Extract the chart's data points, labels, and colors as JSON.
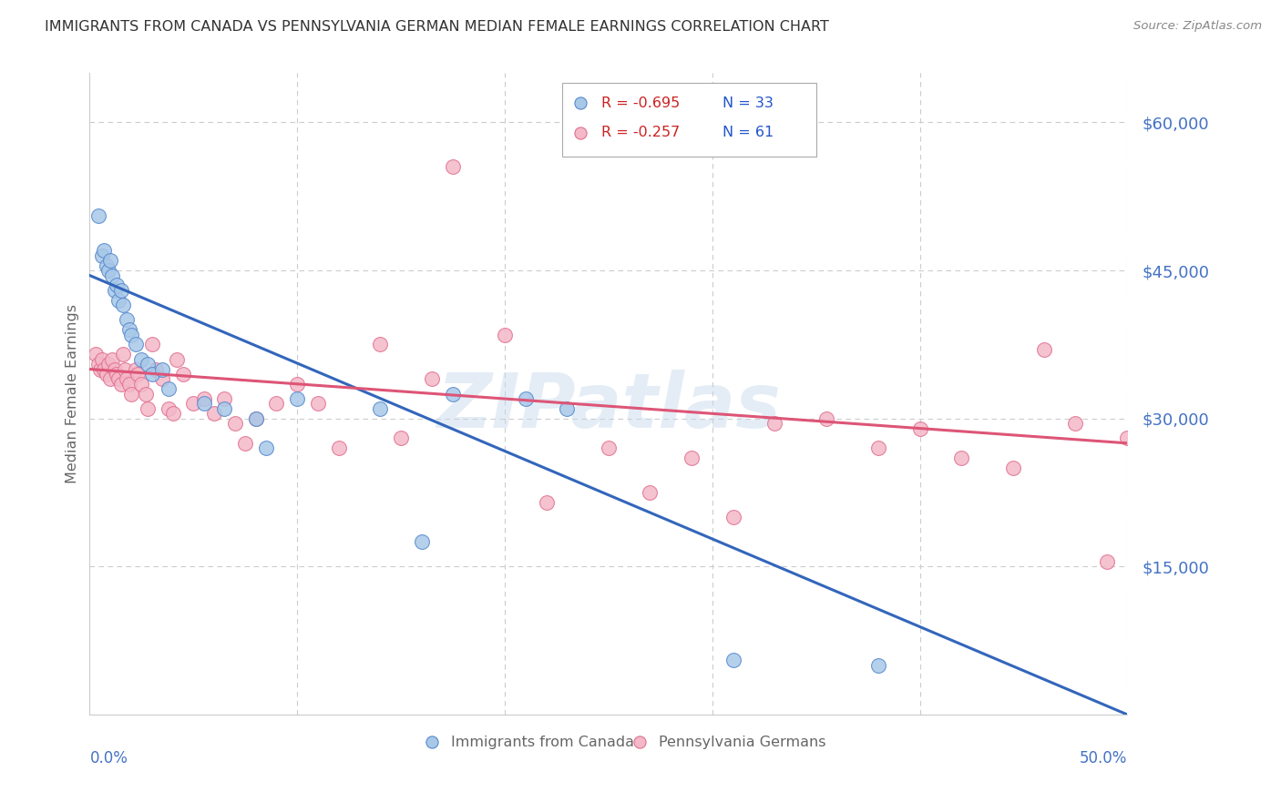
{
  "title": "IMMIGRANTS FROM CANADA VS PENNSYLVANIA GERMAN MEDIAN FEMALE EARNINGS CORRELATION CHART",
  "source": "Source: ZipAtlas.com",
  "ylabel": "Median Female Earnings",
  "yticks": [
    0,
    15000,
    30000,
    45000,
    60000
  ],
  "ytick_labels": [
    "",
    "$15,000",
    "$30,000",
    "$45,000",
    "$60,000"
  ],
  "ylim": [
    0,
    65000
  ],
  "xlim": [
    0.0,
    0.5
  ],
  "legend_blue_r": "R = -0.695",
  "legend_blue_n": "N = 33",
  "legend_pink_r": "R = -0.257",
  "legend_pink_n": "N = 61",
  "legend_label_blue": "Immigrants from Canada",
  "legend_label_pink": "Pennsylvania Germans",
  "blue_color": "#a8c8e8",
  "pink_color": "#f4b8c8",
  "blue_edge_color": "#5588cc",
  "pink_edge_color": "#e07090",
  "blue_line_color": "#3366bb",
  "pink_line_color": "#dd5577",
  "blue_scatter_x": [
    0.004,
    0.006,
    0.007,
    0.008,
    0.009,
    0.01,
    0.011,
    0.012,
    0.013,
    0.014,
    0.015,
    0.016,
    0.018,
    0.019,
    0.02,
    0.022,
    0.025,
    0.028,
    0.03,
    0.035,
    0.038,
    0.055,
    0.065,
    0.08,
    0.085,
    0.1,
    0.14,
    0.16,
    0.175,
    0.21,
    0.23,
    0.31,
    0.38
  ],
  "blue_scatter_y": [
    50500,
    46500,
    47000,
    45500,
    45000,
    46000,
    44500,
    43000,
    43500,
    42000,
    43000,
    41500,
    40000,
    39000,
    38500,
    37500,
    36000,
    35500,
    34500,
    35000,
    33000,
    31500,
    31000,
    30000,
    27000,
    32000,
    31000,
    17500,
    32500,
    32000,
    31000,
    5500,
    5000
  ],
  "pink_scatter_x": [
    0.003,
    0.004,
    0.005,
    0.006,
    0.007,
    0.008,
    0.009,
    0.01,
    0.011,
    0.012,
    0.013,
    0.014,
    0.015,
    0.016,
    0.017,
    0.018,
    0.019,
    0.02,
    0.022,
    0.023,
    0.025,
    0.027,
    0.028,
    0.03,
    0.032,
    0.035,
    0.038,
    0.04,
    0.042,
    0.045,
    0.05,
    0.055,
    0.06,
    0.065,
    0.07,
    0.075,
    0.08,
    0.09,
    0.1,
    0.11,
    0.12,
    0.14,
    0.15,
    0.165,
    0.175,
    0.2,
    0.22,
    0.25,
    0.27,
    0.29,
    0.31,
    0.33,
    0.355,
    0.38,
    0.4,
    0.42,
    0.445,
    0.46,
    0.475,
    0.49,
    0.5
  ],
  "pink_scatter_y": [
    36500,
    35500,
    35000,
    36000,
    35000,
    34500,
    35500,
    34000,
    36000,
    35000,
    34500,
    34000,
    33500,
    36500,
    35000,
    34000,
    33500,
    32500,
    35000,
    34500,
    33500,
    32500,
    31000,
    37500,
    35000,
    34000,
    31000,
    30500,
    36000,
    34500,
    31500,
    32000,
    30500,
    32000,
    29500,
    27500,
    30000,
    31500,
    33500,
    31500,
    27000,
    37500,
    28000,
    34000,
    55500,
    38500,
    21500,
    27000,
    22500,
    26000,
    20000,
    29500,
    30000,
    27000,
    29000,
    26000,
    25000,
    37000,
    29500,
    15500,
    28000
  ],
  "background_color": "#ffffff",
  "grid_color": "#cccccc",
  "title_color": "#333333",
  "axis_label_color": "#666666",
  "ytick_label_color": "#4472c4",
  "xtick_label_color": "#4472c4",
  "watermark_text": "ZIPatlas",
  "watermark_color": "#ccddeeff",
  "blue_trend_x": [
    0.0,
    0.5
  ],
  "blue_trend_y": [
    44500,
    0
  ],
  "pink_trend_x": [
    0.0,
    0.5
  ],
  "pink_trend_y": [
    35000,
    27500
  ]
}
